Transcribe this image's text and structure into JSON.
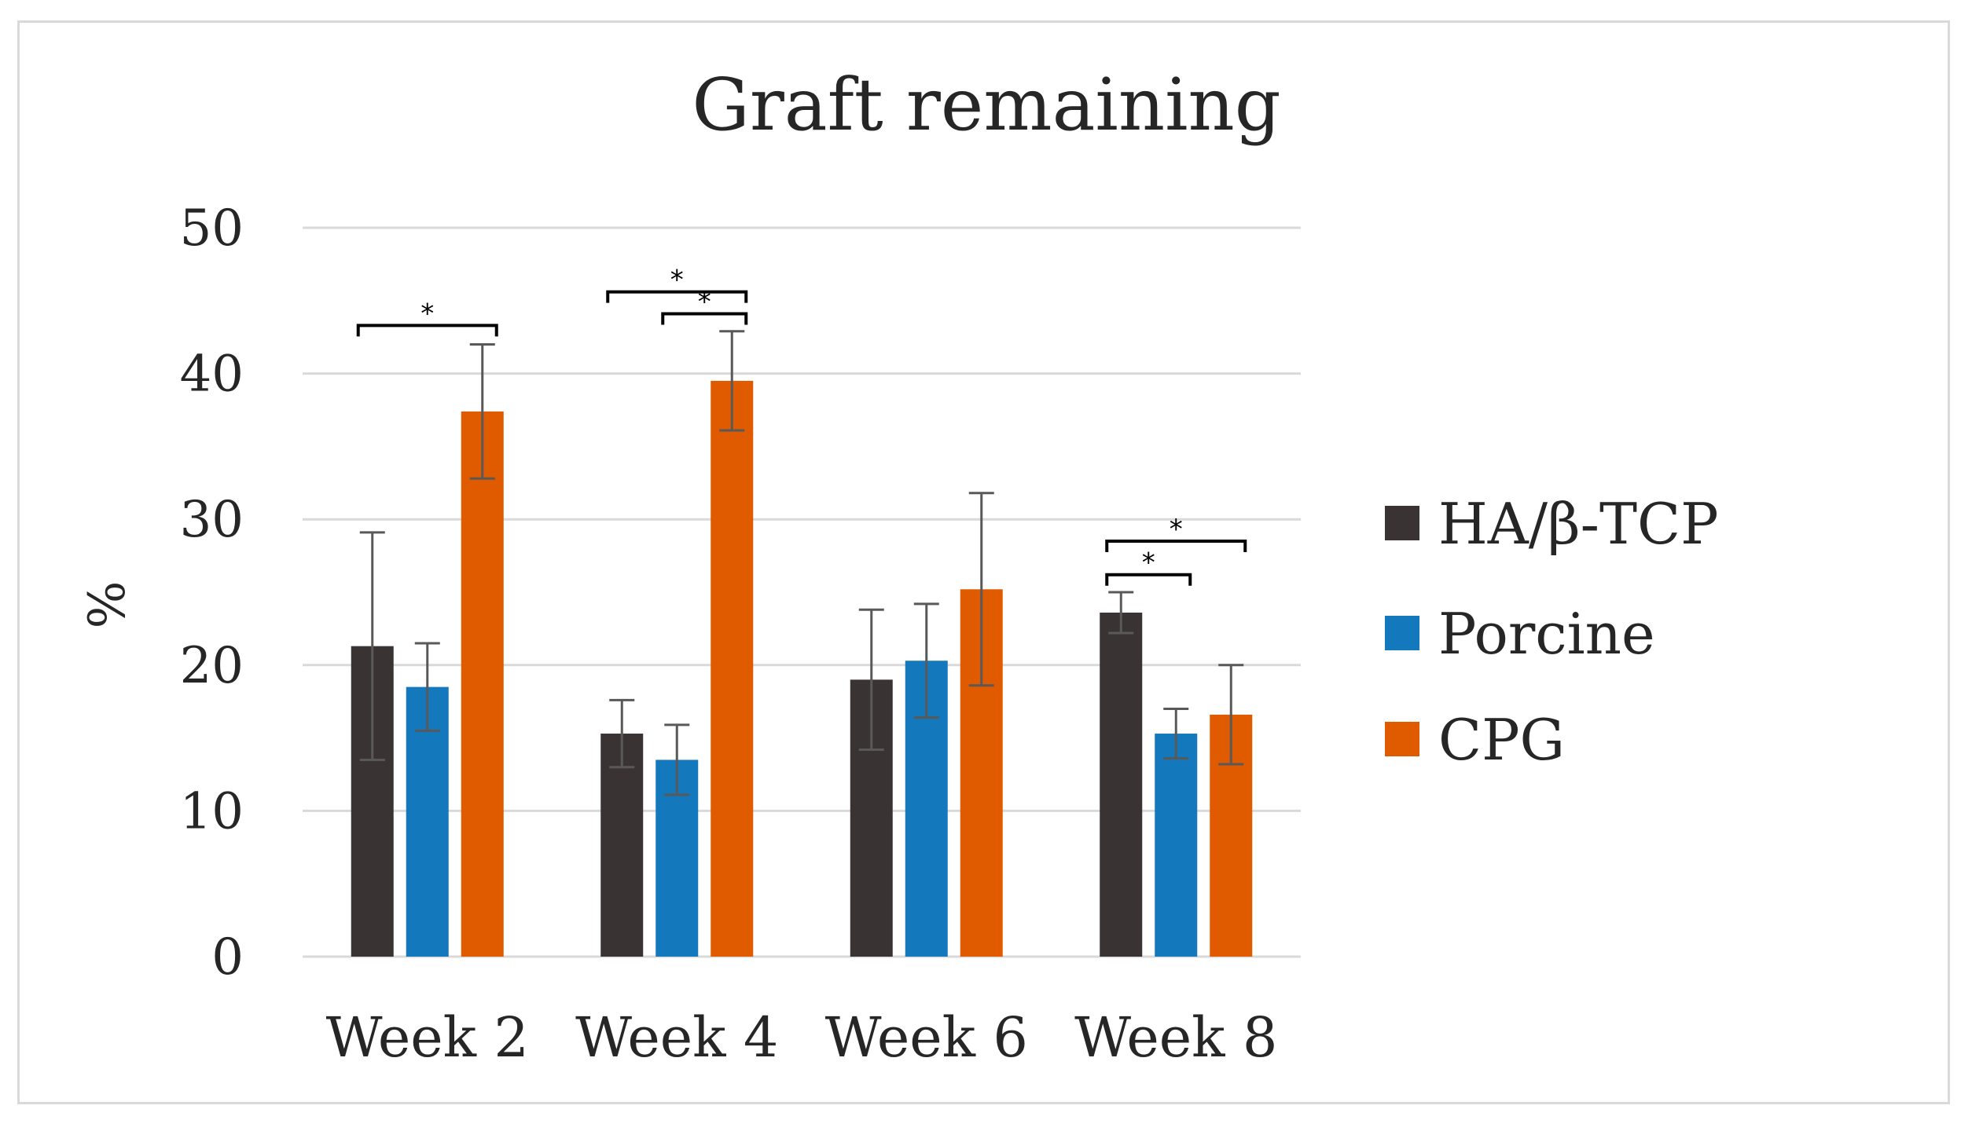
{
  "chart_data": {
    "type": "bar",
    "title": "Graft remaining",
    "ylabel": "%",
    "xlabel": "",
    "ylim": [
      0,
      50
    ],
    "yticks": [
      0,
      10,
      20,
      30,
      40,
      50
    ],
    "grid": true,
    "legend_position": "right",
    "categories": [
      "Week 2",
      "Week 4",
      "Week 6",
      "Week 8"
    ],
    "series": [
      {
        "name": "HA/β-TCP",
        "color": "#3a3333",
        "values": [
          21.3,
          15.3,
          19.0,
          23.6
        ],
        "errors": [
          7.8,
          2.3,
          4.8,
          1.4
        ]
      },
      {
        "name": "Porcine",
        "color": "#1478bd",
        "values": [
          18.5,
          13.5,
          20.3,
          15.3
        ],
        "errors": [
          3.0,
          2.4,
          3.9,
          1.7
        ]
      },
      {
        "name": "CPG",
        "color": "#e05a00",
        "values": [
          37.4,
          39.5,
          25.2,
          16.6
        ],
        "errors": [
          4.6,
          3.4,
          6.6,
          3.4
        ]
      }
    ],
    "significance": [
      {
        "category": 0,
        "from": 0,
        "to": 2,
        "y": 43.3,
        "label": "*"
      },
      {
        "category": 1,
        "from": 0,
        "to": 2,
        "y": 45.6,
        "label": "*"
      },
      {
        "category": 1,
        "from": 1,
        "to": 2,
        "y": 44.1,
        "label": "*"
      },
      {
        "category": 3,
        "from": 0,
        "to": 2,
        "y": 28.5,
        "label": "*"
      },
      {
        "category": 3,
        "from": 0,
        "to": 1,
        "y": 26.2,
        "label": "*"
      }
    ]
  }
}
